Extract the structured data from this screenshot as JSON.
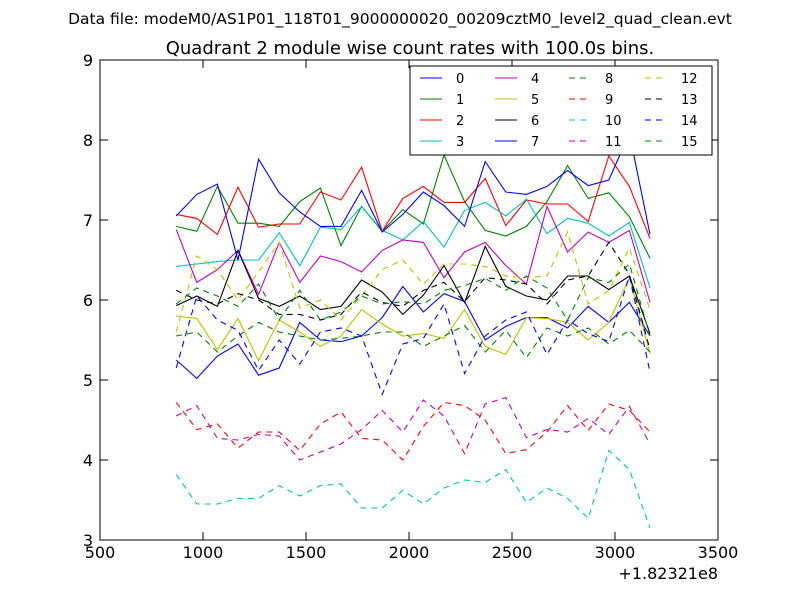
{
  "header": {
    "datafile": "Data file: modeM0/AS1P01_118T01_9000000020_00209cztM0_level2_quad_clean.evt"
  },
  "chart_data": {
    "type": "line",
    "title": "Quadrant 2 module wise count rates with 100.0s bins.",
    "xlabel": "",
    "ylabel": "",
    "x_offset_label": "+1.82321e8",
    "xlim": [
      500,
      3500
    ],
    "ylim": [
      3,
      9
    ],
    "xticks": [
      500,
      1000,
      1500,
      2000,
      2500,
      3000,
      3500
    ],
    "yticks": [
      3,
      4,
      5,
      6,
      7,
      8,
      9
    ],
    "grid": false,
    "legend_position": "top-right",
    "x": [
      870,
      970,
      1070,
      1170,
      1270,
      1370,
      1470,
      1570,
      1670,
      1770,
      1870,
      1970,
      2070,
      2170,
      2270,
      2370,
      2470,
      2570,
      2670,
      2770,
      2870,
      2970,
      3070,
      3170
    ],
    "series": [
      {
        "name": "0",
        "color": "#0000ff",
        "dash": false,
        "values": [
          5.25,
          5.02,
          5.3,
          5.45,
          5.06,
          5.15,
          5.72,
          5.5,
          5.48,
          5.55,
          5.78,
          6.17,
          5.85,
          6.08,
          5.98,
          5.5,
          5.67,
          5.78,
          5.78,
          5.65,
          5.92,
          5.72,
          5.97,
          5.55
        ]
      },
      {
        "name": "1",
        "color": "#008000",
        "dash": false,
        "values": [
          6.92,
          6.86,
          7.42,
          6.96,
          6.96,
          6.92,
          7.23,
          7.4,
          6.68,
          7.17,
          6.86,
          7.13,
          6.95,
          7.81,
          7.23,
          6.87,
          6.8,
          6.92,
          7.23,
          7.68,
          7.27,
          7.34,
          7.04,
          6.52
        ]
      },
      {
        "name": "2",
        "color": "#ff0000",
        "dash": false,
        "values": [
          7.07,
          7.02,
          6.82,
          7.41,
          6.91,
          6.95,
          6.95,
          7.35,
          7.25,
          7.66,
          6.86,
          7.27,
          7.42,
          7.22,
          7.22,
          7.52,
          6.93,
          7.25,
          7.2,
          7.2,
          6.98,
          7.8,
          7.42,
          6.77
        ]
      },
      {
        "name": "3",
        "color": "#00bfbf",
        "dash": false,
        "values": [
          6.42,
          6.45,
          6.48,
          6.5,
          6.5,
          6.84,
          6.43,
          6.91,
          6.88,
          7.17,
          6.87,
          6.75,
          6.98,
          6.66,
          7.12,
          7.22,
          7.05,
          7.26,
          6.83,
          7.02,
          6.96,
          6.8,
          6.97,
          6.15
        ]
      },
      {
        "name": "4",
        "color": "#bf00bf",
        "dash": false,
        "values": [
          6.88,
          6.22,
          6.38,
          6.62,
          6.07,
          6.72,
          6.22,
          6.55,
          6.48,
          6.35,
          6.62,
          6.75,
          6.72,
          6.28,
          6.6,
          6.72,
          6.43,
          6.2,
          7.17,
          6.6,
          6.85,
          6.72,
          6.87,
          5.97
        ]
      },
      {
        "name": "5",
        "color": "#bfbf00",
        "dash": false,
        "values": [
          5.8,
          5.77,
          5.38,
          5.77,
          5.24,
          5.75,
          5.6,
          5.42,
          5.55,
          5.88,
          5.7,
          5.55,
          5.58,
          5.52,
          5.88,
          5.42,
          5.32,
          5.78,
          5.77,
          5.72,
          5.5,
          5.72,
          6.28,
          5.33
        ]
      },
      {
        "name": "6",
        "color": "#000000",
        "dash": false,
        "values": [
          5.93,
          6.05,
          5.92,
          6.62,
          6.02,
          5.92,
          6.05,
          5.88,
          5.92,
          6.25,
          6.1,
          5.82,
          6.06,
          6.43,
          5.97,
          6.67,
          6.17,
          6.05,
          6.0,
          6.3,
          6.3,
          6.13,
          6.3,
          5.58
        ]
      },
      {
        "name": "7",
        "color": "#0000ff",
        "dash": false,
        "values": [
          7.05,
          7.32,
          7.45,
          6.5,
          7.76,
          7.34,
          7.1,
          6.92,
          6.92,
          7.37,
          6.85,
          7.07,
          7.35,
          7.18,
          6.92,
          7.73,
          7.35,
          7.32,
          7.42,
          7.62,
          7.43,
          7.5,
          8.08,
          6.82
        ]
      },
      {
        "name": "8",
        "color": "#008000",
        "dash": true,
        "values": [
          5.55,
          5.6,
          5.35,
          5.55,
          5.72,
          5.6,
          5.55,
          5.5,
          5.52,
          5.55,
          5.6,
          5.6,
          5.42,
          5.55,
          5.68,
          5.35,
          5.62,
          5.28,
          5.65,
          5.55,
          5.65,
          5.45,
          5.62,
          5.35
        ]
      },
      {
        "name": "9",
        "color": "#ff0000",
        "dash": true,
        "values": [
          4.72,
          4.38,
          4.45,
          4.15,
          4.35,
          4.35,
          4.12,
          4.45,
          4.6,
          4.27,
          4.25,
          4.0,
          4.42,
          4.72,
          4.68,
          4.5,
          4.08,
          4.13,
          4.35,
          4.68,
          4.37,
          4.7,
          4.62,
          4.35
        ]
      },
      {
        "name": "10",
        "color": "#00bfbf",
        "dash": true,
        "values": [
          3.82,
          3.45,
          3.45,
          3.52,
          3.52,
          3.68,
          3.55,
          3.68,
          3.7,
          3.4,
          3.4,
          3.62,
          3.45,
          3.65,
          3.75,
          3.72,
          3.88,
          3.47,
          3.65,
          3.52,
          3.27,
          4.12,
          3.88,
          3.15
        ]
      },
      {
        "name": "11",
        "color": "#bf00bf",
        "dash": true,
        "values": [
          4.55,
          4.68,
          4.27,
          4.25,
          4.32,
          4.3,
          4.0,
          4.1,
          4.2,
          4.38,
          4.62,
          4.35,
          4.75,
          4.55,
          4.08,
          4.7,
          4.78,
          4.28,
          4.38,
          4.35,
          4.52,
          4.32,
          4.67,
          4.2
        ]
      },
      {
        "name": "12",
        "color": "#bfbf00",
        "dash": true,
        "values": [
          5.6,
          6.55,
          6.38,
          6.0,
          6.35,
          6.72,
          5.9,
          6.0,
          5.75,
          6.05,
          6.38,
          6.5,
          6.2,
          6.45,
          6.45,
          6.42,
          6.3,
          6.28,
          6.3,
          6.85,
          5.95,
          6.12,
          6.65,
          5.88
        ]
      },
      {
        "name": "13",
        "color": "#000000",
        "dash": true,
        "values": [
          6.12,
          6.0,
          5.95,
          6.08,
          6.0,
          5.82,
          5.82,
          5.75,
          5.82,
          6.1,
          5.97,
          5.92,
          6.12,
          6.22,
          5.98,
          6.28,
          6.25,
          6.2,
          5.95,
          6.25,
          6.3,
          6.72,
          6.32,
          5.38
        ]
      },
      {
        "name": "14",
        "color": "#0000ff",
        "dash": true,
        "values": [
          5.15,
          6.05,
          5.75,
          5.62,
          5.12,
          5.5,
          5.2,
          5.6,
          5.65,
          5.55,
          4.82,
          5.45,
          5.52,
          5.95,
          5.08,
          5.55,
          5.75,
          5.85,
          5.32,
          5.75,
          5.58,
          5.48,
          6.3,
          5.1
        ]
      },
      {
        "name": "15",
        "color": "#008000",
        "dash": true,
        "values": [
          5.95,
          6.15,
          6.05,
          5.92,
          6.2,
          5.75,
          6.12,
          5.75,
          5.85,
          6.05,
          5.95,
          5.98,
          5.95,
          6.12,
          6.18,
          6.27,
          6.12,
          6.3,
          6.15,
          5.75,
          6.28,
          6.22,
          6.45,
          5.55
        ]
      }
    ]
  }
}
